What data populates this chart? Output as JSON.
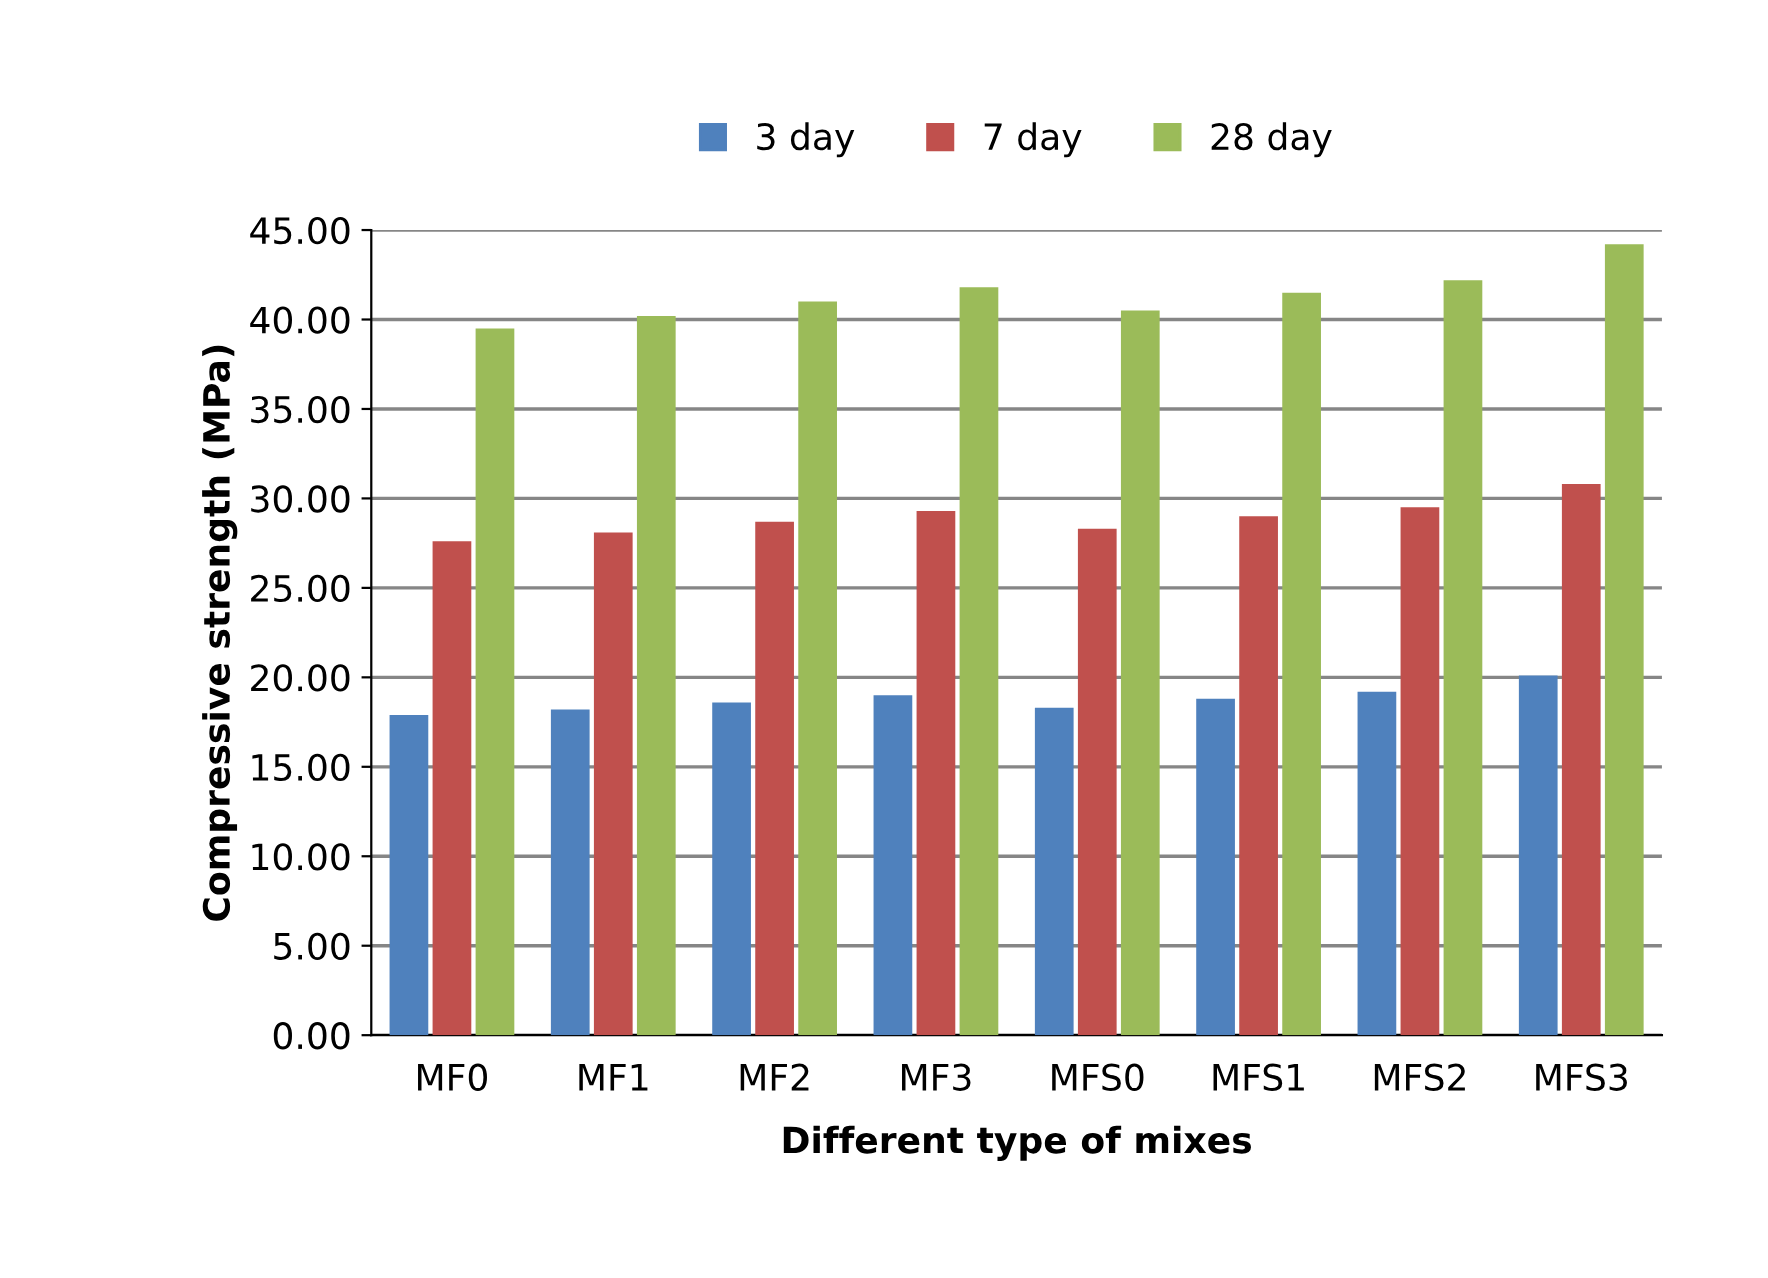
{
  "chart_data": {
    "type": "bar",
    "xlabel": "Different type of mixes",
    "ylabel": "Compressive strength (MPa)",
    "categories": [
      "MF0",
      "MF1",
      "MF2",
      "MF3",
      "MFS0",
      "MFS1",
      "MFS2",
      "MFS3"
    ],
    "series": [
      {
        "name": "3 day",
        "color": "#4f81bd",
        "values": [
          17.9,
          18.2,
          18.6,
          19.0,
          18.3,
          18.8,
          19.2,
          20.1
        ]
      },
      {
        "name": "7 day",
        "color": "#c0504d",
        "values": [
          27.6,
          28.1,
          28.7,
          29.3,
          28.3,
          29.0,
          29.5,
          30.8
        ]
      },
      {
        "name": "28 day",
        "color": "#9bbb59",
        "values": [
          39.5,
          40.2,
          41.0,
          41.8,
          40.5,
          41.5,
          42.2,
          44.2
        ]
      }
    ],
    "ylim": [
      0,
      45
    ],
    "yticks": [
      {
        "value": 0,
        "label": "0.00"
      },
      {
        "value": 5,
        "label": "5.00"
      },
      {
        "value": 10,
        "label": "10.00"
      },
      {
        "value": 15,
        "label": "15.00"
      },
      {
        "value": 20,
        "label": "20.00"
      },
      {
        "value": 25,
        "label": "25.00"
      },
      {
        "value": 30,
        "label": "30.00"
      },
      {
        "value": 35,
        "label": "35.00"
      },
      {
        "value": 40,
        "label": "40.00"
      },
      {
        "value": 45,
        "label": "45.00"
      }
    ],
    "grid": "y",
    "legend": "top"
  }
}
